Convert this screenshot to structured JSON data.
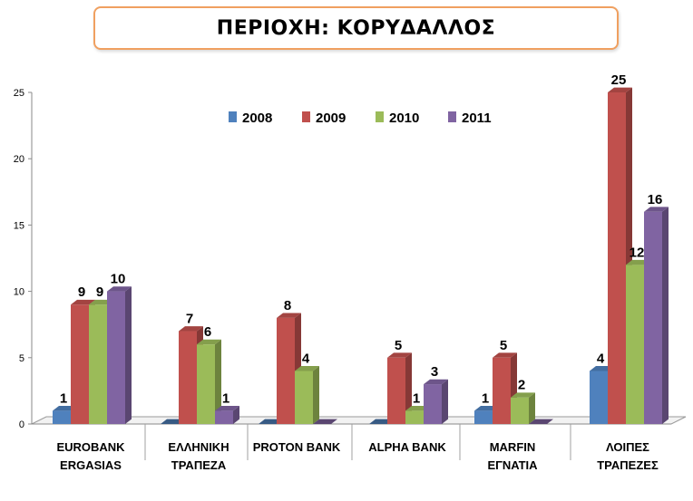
{
  "title": "ΠΕΡΙΟΧΗ: ΚΟΡΥΔΑΛΛΟΣ",
  "chart_data": {
    "type": "bar",
    "title": "ΠΕΡΙΟΧΗ: ΚΟΡΥΔΑΛΛΟΣ",
    "categories": [
      [
        "EUROBANK",
        "ERGASIAS"
      ],
      [
        "ΕΛΛΗΝΙΚΗ",
        "ΤΡΑΠΕΖΑ"
      ],
      [
        "PROTON BANK"
      ],
      [
        "ALPHA BANK"
      ],
      [
        "MARFIN",
        "ΕΓΝΑΤΙΑ"
      ],
      [
        "ΛΟΙΠΕΣ",
        "ΤΡΑΠΕΖΕΣ"
      ]
    ],
    "series": [
      {
        "name": "2008",
        "color": "#4f81bd",
        "values": [
          1,
          0,
          0,
          0,
          1,
          4
        ]
      },
      {
        "name": "2009",
        "color": "#c0504d",
        "values": [
          9,
          7,
          8,
          5,
          5,
          25
        ]
      },
      {
        "name": "2010",
        "color": "#9bbb59",
        "values": [
          9,
          6,
          4,
          1,
          2,
          12
        ]
      },
      {
        "name": "2011",
        "color": "#8064a2",
        "values": [
          10,
          1,
          0,
          3,
          0,
          16
        ]
      }
    ],
    "data_labels": [
      [
        "1",
        "",
        "",
        "",
        "1",
        "4"
      ],
      [
        "9",
        "7",
        "8",
        "5",
        "5",
        "25"
      ],
      [
        "9",
        "6",
        "4",
        "1",
        "2",
        "12"
      ],
      [
        "10",
        "1",
        "",
        "3",
        "",
        "16"
      ]
    ],
    "ylim": [
      0,
      25
    ],
    "yticks": [
      "0",
      "5",
      "10",
      "15",
      "20",
      "25"
    ],
    "legend_position": "top-center",
    "grid": false,
    "xlabel": "",
    "ylabel": ""
  }
}
